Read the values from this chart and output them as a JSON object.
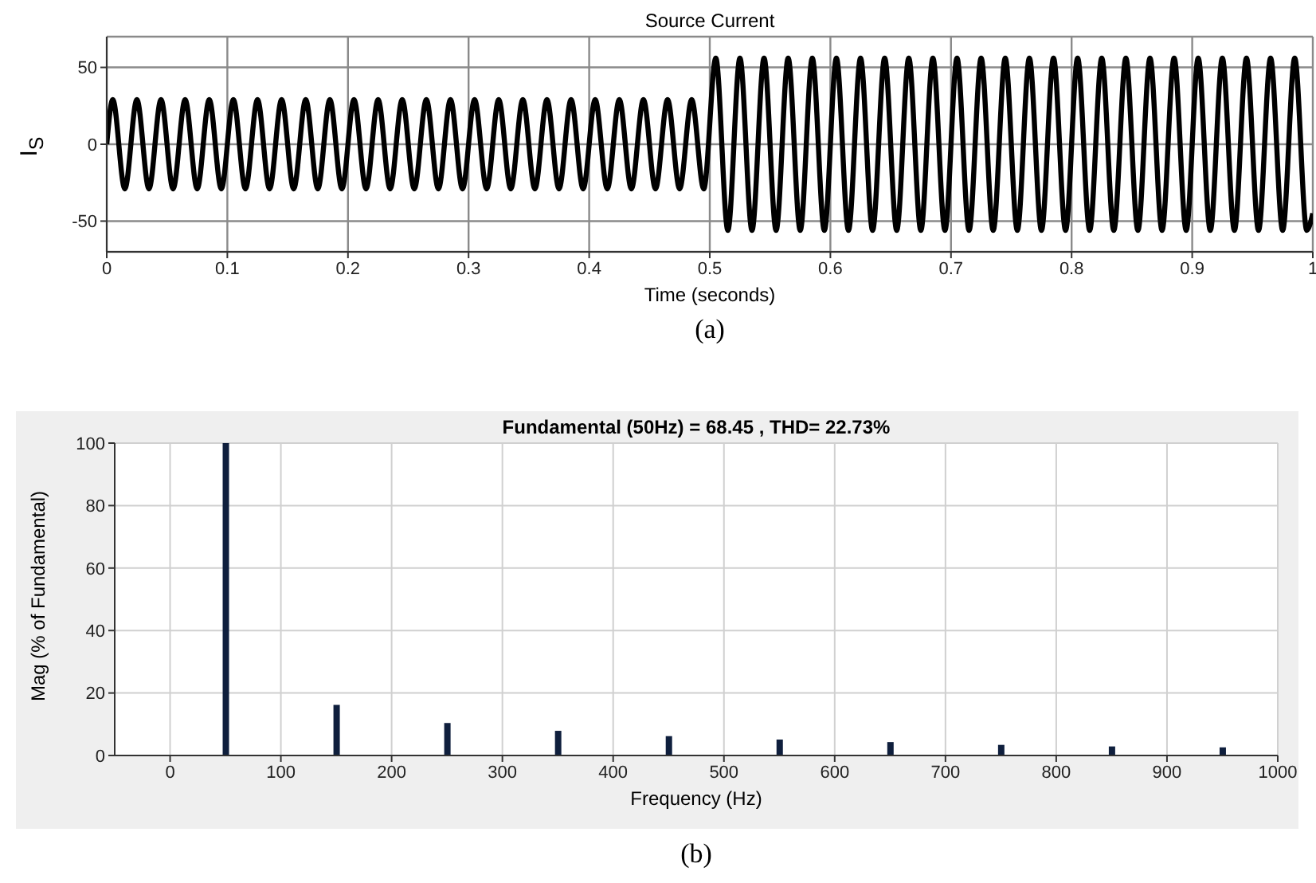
{
  "chart_data": [
    {
      "type": "line",
      "title": "Source Current",
      "xlabel": "Time (seconds)",
      "ylabel": "I$_{S}$",
      "annotations": [
        "(a)"
      ],
      "x": [
        0,
        0.005,
        0.015,
        0.025,
        0.035,
        0.045,
        0.055,
        0.065,
        0.075,
        0.085,
        0.095,
        0.105,
        0.115,
        0.125,
        0.135,
        0.145,
        0.155,
        0.165,
        0.175,
        0.185,
        0.195,
        0.205,
        0.215,
        0.225,
        0.235,
        0.245,
        0.255,
        0.265,
        0.275,
        0.285,
        0.295,
        0.305,
        0.315,
        0.325,
        0.335,
        0.345,
        0.355,
        0.365,
        0.375,
        0.385,
        0.395,
        0.405,
        0.415,
        0.425,
        0.435,
        0.445,
        0.455,
        0.465,
        0.475,
        0.485,
        0.495,
        0.505,
        0.515,
        0.525,
        0.535,
        0.545,
        0.555,
        0.565,
        0.575,
        0.585,
        0.595,
        0.605,
        0.615,
        0.625,
        0.635,
        0.645,
        0.655,
        0.665,
        0.675,
        0.685,
        0.695,
        0.705,
        0.715,
        0.725,
        0.735,
        0.745,
        0.755,
        0.765,
        0.775,
        0.785,
        0.795,
        0.805,
        0.815,
        0.825,
        0.835,
        0.845,
        0.855,
        0.865,
        0.875,
        0.885,
        0.895,
        0.905,
        0.915,
        0.925,
        0.935,
        0.945,
        0.955,
        0.965,
        0.975,
        0.985,
        0.995,
        1
      ],
      "series": [
        {
          "color": "#000000",
          "values": [
            0,
            29,
            -29,
            29,
            -29,
            29,
            -29,
            29,
            -29,
            29,
            -29,
            29,
            -29,
            29,
            -29,
            29,
            -29,
            29,
            -29,
            29,
            -29,
            29,
            -29,
            29,
            -29,
            29,
            -29,
            29,
            -29,
            29,
            -29,
            29,
            -29,
            29,
            -29,
            29,
            -29,
            29,
            -29,
            29,
            -29,
            29,
            -29,
            29,
            -29,
            29,
            -29,
            29,
            -29,
            29,
            -29,
            56,
            -56,
            56,
            -56,
            56,
            -56,
            56,
            -56,
            56,
            -56,
            56,
            -56,
            56,
            -56,
            56,
            -56,
            56,
            -56,
            56,
            -56,
            56,
            -56,
            56,
            -56,
            56,
            -56,
            56,
            -56,
            56,
            -56,
            56,
            -56,
            56,
            -56,
            56,
            -56,
            56,
            -56,
            56,
            -56,
            56,
            -56,
            56,
            -56,
            56,
            -56,
            56,
            -56,
            56,
            -56,
            -45
          ]
        }
      ],
      "xlim": [
        0,
        1
      ],
      "xticks": [
        0,
        0.1,
        0.2,
        0.3,
        0.4,
        0.5,
        0.6,
        0.7,
        0.8,
        0.9,
        1
      ],
      "ylim": [
        -70,
        70
      ],
      "yticks": [
        -50,
        0,
        50
      ],
      "grid": true,
      "marker": "none",
      "line_style": "solid"
    },
    {
      "type": "bar",
      "title": "Fundamental (50Hz) = 68.45 , THD= 22.73%",
      "xlabel": "Frequency (Hz)",
      "ylabel": "Mag (% of Fundamental)",
      "annotations": [
        "(b)"
      ],
      "x": [
        50,
        150,
        250,
        350,
        450,
        550,
        650,
        750,
        850,
        950
      ],
      "series": [
        {
          "color": "#0f1f3d",
          "values": [
            100,
            16.2,
            10.4,
            7.9,
            6.2,
            5.1,
            4.3,
            3.4,
            2.9,
            2.6
          ]
        }
      ],
      "xlim": [
        -50,
        1000
      ],
      "xticks": [
        0,
        100,
        200,
        300,
        400,
        500,
        600,
        700,
        800,
        900,
        1000
      ],
      "ylim": [
        0,
        100
      ],
      "yticks": [
        0,
        20,
        40,
        60,
        80,
        100
      ],
      "grid": true
    }
  ]
}
